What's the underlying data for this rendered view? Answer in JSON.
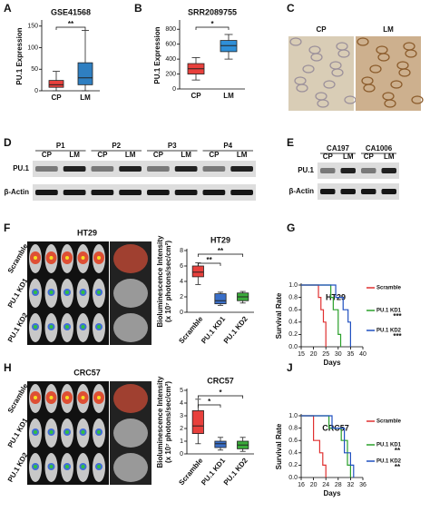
{
  "panel_labels": [
    "A",
    "B",
    "C",
    "D",
    "E",
    "F",
    "G",
    "H",
    "J"
  ],
  "chart_data": [
    {
      "type": "box",
      "title": "GSE41568",
      "ylabel": [
        "PU.1 Expression"
      ],
      "categories": [
        "CP",
        "LM"
      ],
      "colors": [
        "#e8403c",
        "#2f7fc1"
      ],
      "boxes": [
        {
          "min": 0,
          "q1": 8,
          "median": 14,
          "q3": 24,
          "max": 45
        },
        {
          "min": 0,
          "q1": 14,
          "median": 30,
          "q3": 65,
          "max": 140
        }
      ],
      "ylim": [
        0,
        160
      ],
      "yticks": [
        0,
        50,
        100,
        150
      ],
      "annotations": [
        "**"
      ]
    },
    {
      "type": "box",
      "title": "SRR2089755",
      "ylabel": [
        "PU.1 Expression"
      ],
      "categories": [
        "CP",
        "LM"
      ],
      "colors": [
        "#e8403c",
        "#2f8fd8"
      ],
      "boxes": [
        {
          "min": 120,
          "q1": 200,
          "median": 270,
          "q3": 340,
          "max": 420
        },
        {
          "min": 400,
          "q1": 500,
          "median": 580,
          "q3": 650,
          "max": 730
        }
      ],
      "ylim": [
        0,
        900
      ],
      "yticks": [
        0,
        200,
        400,
        600,
        800
      ],
      "annotations": [
        "*"
      ]
    },
    {
      "type": "box",
      "title": "HT29",
      "ylabel": [
        "Bioluminescence Intensity",
        "(x 10⁷ photons/sec/cm²)"
      ],
      "categories": [
        "Scramble",
        "PU.1 KD1",
        "PU.1 KD2"
      ],
      "colors": [
        "#e8403c",
        "#3a6fc8",
        "#3aaa3a"
      ],
      "boxes": [
        {
          "min": 3.6,
          "q1": 4.6,
          "median": 5.2,
          "q3": 6.0,
          "max": 6.4
        },
        {
          "min": 0.9,
          "q1": 1.1,
          "median": 1.5,
          "q3": 2.4,
          "max": 2.6
        },
        {
          "min": 1.2,
          "q1": 1.5,
          "median": 2.0,
          "q3": 2.5,
          "max": 2.7
        }
      ],
      "ylim": [
        0,
        8
      ],
      "yticks": [
        0,
        2,
        4,
        6,
        8
      ],
      "annotations": [
        "**",
        "**"
      ]
    },
    {
      "type": "survival",
      "title": "HT29",
      "xlabel": "Days",
      "ylabel": [
        "Survival Rate"
      ],
      "xlim": [
        15,
        40
      ],
      "xticks": [
        15,
        20,
        25,
        30,
        35,
        40
      ],
      "ylim": [
        0,
        1
      ],
      "yticks": [
        {
          "value": 0,
          "label": "0.0"
        },
        0.2,
        0.4,
        0.6,
        0.8,
        {
          "value": 1,
          "label": "1.0"
        }
      ],
      "series": [
        {
          "name": "Scramble",
          "color": "#e03030",
          "x": [
            15,
            22,
            22,
            23,
            23,
            24,
            24,
            25,
            25
          ],
          "values": [
            1,
            1,
            0.8,
            0.8,
            0.6,
            0.6,
            0.4,
            0.4,
            0
          ]
        },
        {
          "name": "PU.1 KD1",
          "color": "#2aa02a",
          "x": [
            15,
            27,
            27,
            28,
            28,
            30,
            30,
            31,
            31
          ],
          "values": [
            1,
            1,
            0.8,
            0.8,
            0.6,
            0.6,
            0.2,
            0.2,
            0
          ]
        },
        {
          "name": "PU.1 KD2",
          "color": "#2050c0",
          "x": [
            15,
            29,
            29,
            32,
            32,
            34,
            34,
            35,
            35
          ],
          "values": [
            1,
            1,
            0.8,
            0.8,
            0.6,
            0.6,
            0.4,
            0.4,
            0
          ]
        }
      ],
      "annotations": [
        "***",
        "***"
      ]
    },
    {
      "type": "box",
      "title": "CRC57",
      "ylabel": [
        "Bioluminescence Intensity",
        "(x 10⁷ photons/sec/cm²)"
      ],
      "categories": [
        "Scramble",
        "PU.1 KD1",
        "PU.1 KD2"
      ],
      "colors": [
        "#e8403c",
        "#3a6fc8",
        "#3aaa3a"
      ],
      "boxes": [
        {
          "min": 0.8,
          "q1": 1.6,
          "median": 2.2,
          "q3": 3.4,
          "max": 4.3
        },
        {
          "min": 0.3,
          "q1": 0.5,
          "median": 0.8,
          "q3": 1.0,
          "max": 1.3
        },
        {
          "min": 0.2,
          "q1": 0.4,
          "median": 0.7,
          "q3": 1.0,
          "max": 1.3
        }
      ],
      "ylim": [
        0,
        5
      ],
      "yticks": [
        0,
        1,
        2,
        3,
        4,
        5
      ],
      "annotations": [
        "*",
        "*"
      ]
    },
    {
      "type": "survival",
      "title": "CRC57",
      "xlabel": "Days",
      "ylabel": [
        "Survival Rate"
      ],
      "xlim": [
        16,
        36
      ],
      "xticks": [
        16,
        20,
        24,
        28,
        32,
        36
      ],
      "ylim": [
        0,
        1
      ],
      "yticks": [
        {
          "value": 0,
          "label": "0.0"
        },
        0.2,
        0.4,
        0.6,
        0.8,
        {
          "value": 1,
          "label": "1.0"
        }
      ],
      "series": [
        {
          "name": "Scramble",
          "color": "#e03030",
          "x": [
            16,
            20,
            20,
            22,
            22,
            23,
            23,
            24,
            24
          ],
          "values": [
            1,
            1,
            0.6,
            0.6,
            0.4,
            0.4,
            0.2,
            0.2,
            0
          ]
        },
        {
          "name": "PU.1 KD1",
          "color": "#2aa02a",
          "x": [
            16,
            25,
            25,
            29,
            29,
            31,
            31,
            32,
            32
          ],
          "values": [
            1,
            1,
            0.8,
            0.8,
            0.6,
            0.6,
            0.2,
            0.2,
            0
          ]
        },
        {
          "name": "PU.1 KD2",
          "color": "#2050c0",
          "x": [
            16,
            26,
            26,
            30,
            30,
            32,
            32,
            33,
            33
          ],
          "values": [
            1,
            1,
            0.8,
            0.8,
            0.4,
            0.4,
            0.2,
            0.2,
            0
          ]
        }
      ],
      "annotations": [
        "**",
        "**"
      ]
    }
  ],
  "ihc": {
    "labels": [
      "CP",
      "LM"
    ]
  },
  "blot_d": {
    "groups": [
      "P1",
      "P2",
      "P3",
      "P4"
    ],
    "lanes": [
      "CP",
      "LM"
    ],
    "rows": [
      "PU.1",
      "β-Actin"
    ]
  },
  "blot_e": {
    "groups": [
      "CA197",
      "CA1006"
    ],
    "lanes": [
      "CP",
      "LM"
    ],
    "rows": [
      "PU.1",
      "β-Actin"
    ]
  },
  "mice_f": {
    "title": "HT29",
    "rows": [
      "Scramble",
      "PU.1 KD1",
      "PU.1 KD2"
    ]
  },
  "mice_h": {
    "title": "CRC57",
    "rows": [
      "Scramble",
      "PU.1 KD1",
      "PU.1 KD2"
    ]
  }
}
